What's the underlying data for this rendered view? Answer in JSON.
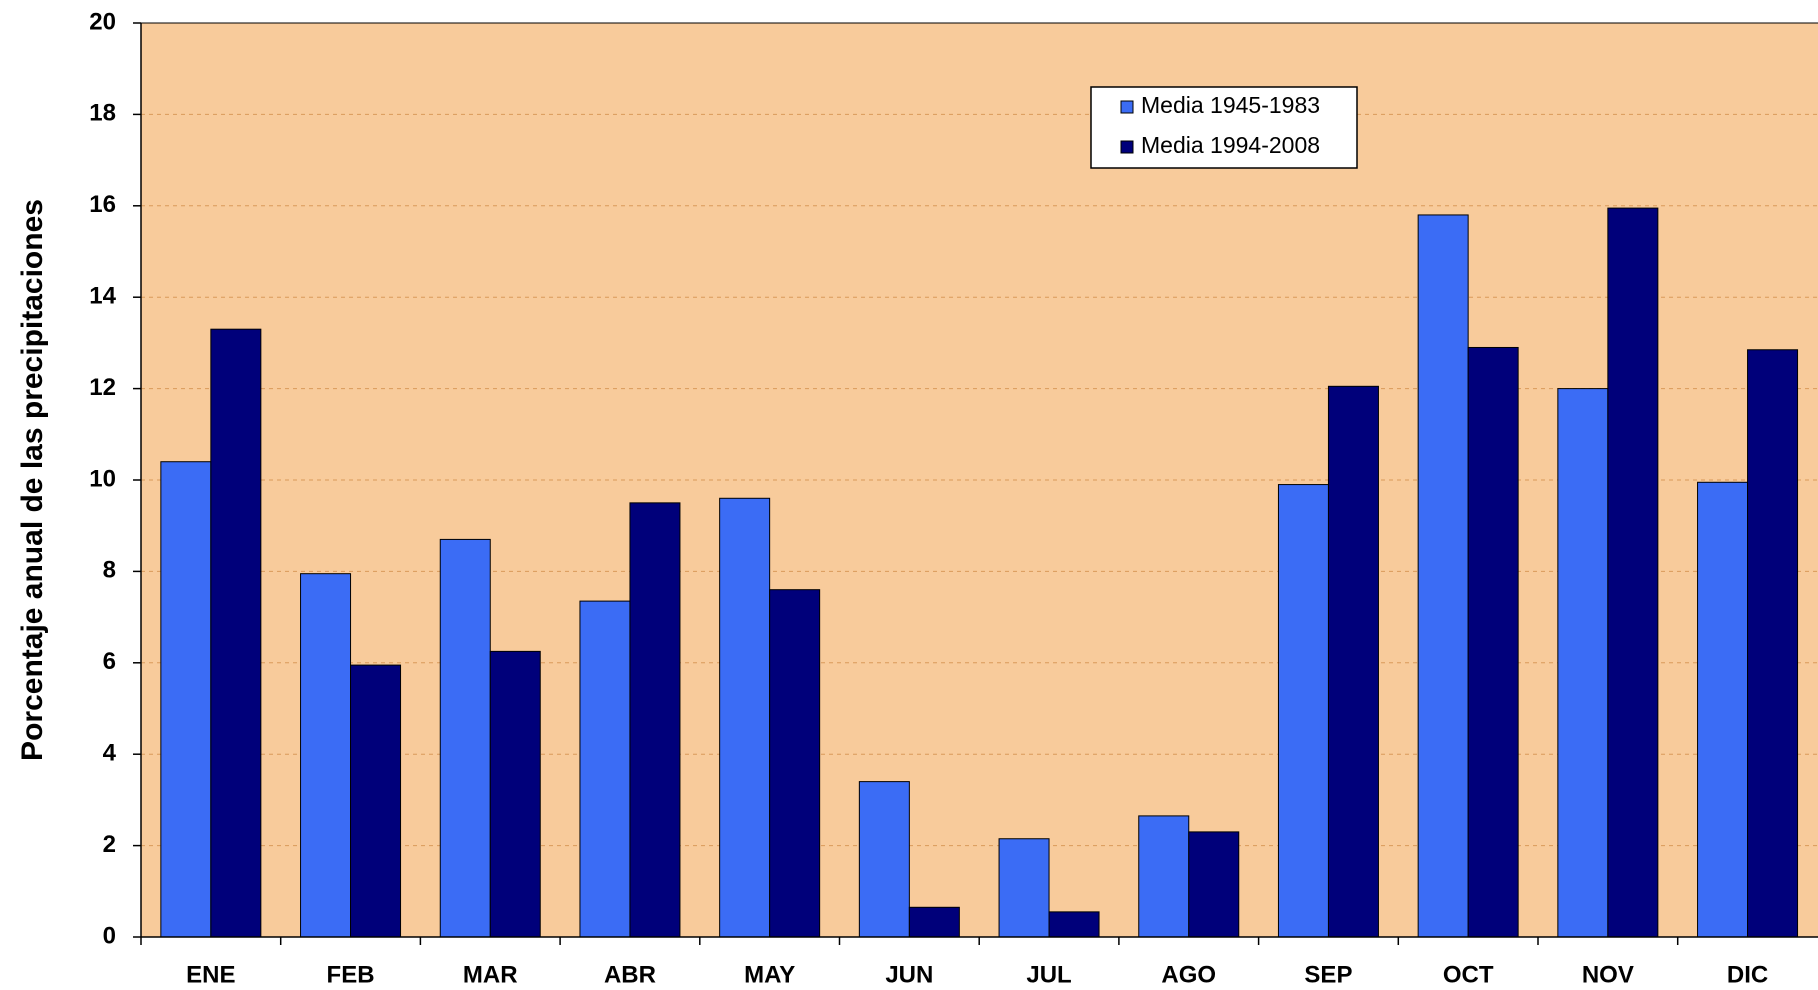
{
  "chart_data": {
    "type": "bar",
    "y_label": "Porcentaje anual de las precipitaciones",
    "categories": [
      "ENE",
      "FEB",
      "MAR",
      "ABR",
      "MAY",
      "JUN",
      "JUL",
      "AGO",
      "SEP",
      "OCT",
      "NOV",
      "DIC"
    ],
    "series": [
      {
        "name": "Media 1945-1983",
        "color": "#3b6cf5",
        "values": [
          10.4,
          7.95,
          8.7,
          7.35,
          9.6,
          3.4,
          2.15,
          2.65,
          9.9,
          15.8,
          12.0,
          9.95
        ]
      },
      {
        "name": "Media 1994-2008",
        "color": "#00007a",
        "values": [
          13.3,
          5.95,
          6.25,
          9.5,
          7.6,
          0.65,
          0.55,
          2.3,
          12.05,
          12.9,
          15.95,
          12.85
        ]
      }
    ],
    "ylim": [
      0,
      20
    ],
    "yticks": [
      0,
      2,
      4,
      6,
      8,
      10,
      12,
      14,
      16,
      18,
      20
    ],
    "grid": true
  }
}
